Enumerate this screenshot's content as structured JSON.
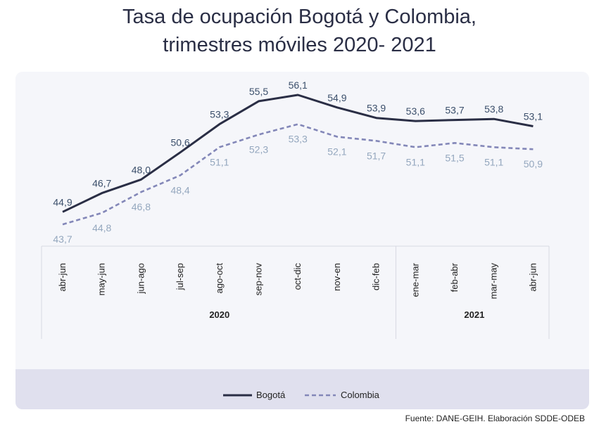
{
  "title": {
    "line1": "Tasa de ocupación Bogotá y Colombia,",
    "line2": "trimestres móviles 2020- 2021"
  },
  "source": "Fuente: DANE-GEIH. Elaboración SDDE-ODEB",
  "colors": {
    "bogota": "#2a2e45",
    "colombia": "#8387b8",
    "bogota_label": "#3b4f6b",
    "colombia_label": "#94a7be"
  },
  "chart_data": {
    "type": "line",
    "categories": [
      "abr-jun",
      "may-jun",
      "jun-ago",
      "jul-sep",
      "ago-oct",
      "sep-nov",
      "oct-dic",
      "nov-en",
      "dic-feb",
      "ene-mar",
      "feb-abr",
      "mar-may",
      "abr-jun"
    ],
    "year_groups": [
      {
        "label": "2020",
        "from": 0,
        "to": 8
      },
      {
        "label": "2021",
        "from": 9,
        "to": 12
      }
    ],
    "series": [
      {
        "name": "Bogotá",
        "style": "solid",
        "values": [
          44.9,
          46.7,
          48.0,
          50.6,
          53.3,
          55.5,
          56.1,
          54.9,
          53.9,
          53.6,
          53.7,
          53.8,
          53.1
        ],
        "labels": [
          "44,9",
          "46,7",
          "48,0",
          "50,6",
          "53,3",
          "55,5",
          "56,1",
          "54,9",
          "53,9",
          "53,6",
          "53,7",
          "53,8",
          "53,1"
        ]
      },
      {
        "name": "Colombia",
        "style": "dashed",
        "values": [
          43.7,
          44.8,
          46.8,
          48.4,
          51.1,
          52.3,
          53.3,
          52.1,
          51.7,
          51.1,
          51.5,
          51.1,
          50.9
        ],
        "labels": [
          "43,7",
          "44,8",
          "46,8",
          "48,4",
          "51,1",
          "52,3",
          "53,3",
          "52,1",
          "51,7",
          "51,1",
          "51,5",
          "51,1",
          "50,9"
        ]
      }
    ],
    "legend_position": "bottom-center"
  }
}
